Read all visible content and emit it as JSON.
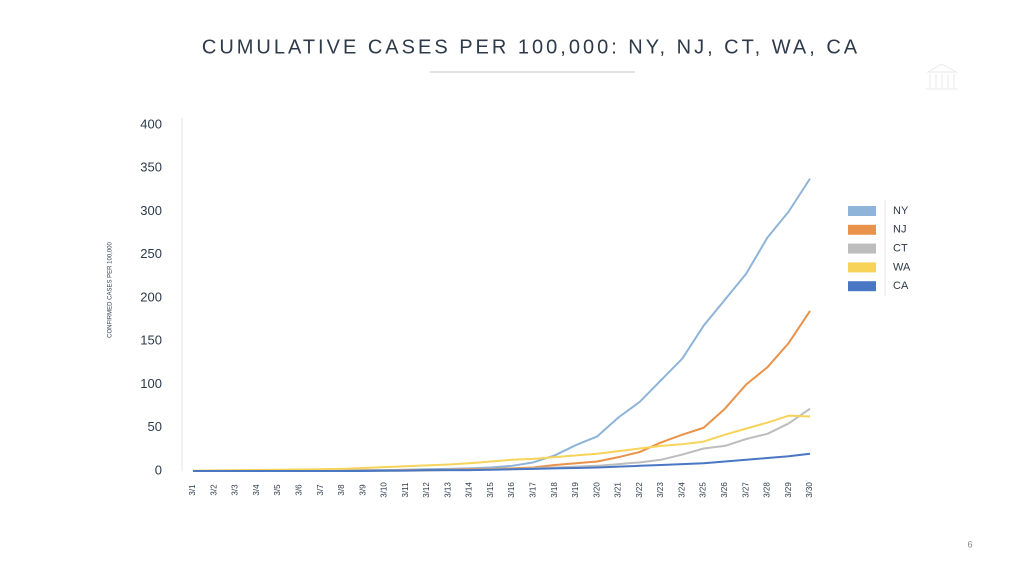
{
  "chart_data": {
    "type": "line",
    "title": "CUMULATIVE CASES PER 100,000: NY, NJ, CT, WA, CA",
    "y_label": "CONFIRMED CASES PER 100,000",
    "categories": [
      "3/1",
      "3/2",
      "3/3",
      "3/4",
      "3/5",
      "3/6",
      "3/7",
      "3/8",
      "3/9",
      "3/10",
      "3/11",
      "3/12",
      "3/13",
      "3/14",
      "3/15",
      "3/16",
      "3/17",
      "3/18",
      "3/19",
      "3/20",
      "3/21",
      "3/22",
      "3/23",
      "3/24",
      "3/25",
      "3/26",
      "3/27",
      "3/28",
      "3/29",
      "3/30"
    ],
    "series": [
      {
        "name": "NY",
        "color": "#8fb4d9",
        "values": [
          0,
          0,
          0,
          0,
          0,
          0,
          0.5,
          0.5,
          1,
          1,
          1.5,
          2,
          2.5,
          3,
          4,
          6,
          10,
          18,
          30,
          40,
          62,
          80,
          105,
          130,
          168,
          198,
          228,
          270,
          300,
          338
        ]
      },
      {
        "name": "NJ",
        "color": "#e8924a",
        "values": [
          0,
          0,
          0,
          0,
          0,
          0,
          0,
          0,
          0.5,
          0.5,
          1,
          1,
          1.5,
          2,
          2.5,
          3,
          4,
          7,
          9,
          11,
          16,
          22,
          33,
          42,
          50,
          72,
          100,
          120,
          148,
          185
        ]
      },
      {
        "name": "CT",
        "color": "#bdbdbd",
        "values": [
          0,
          0,
          0,
          0,
          0,
          0,
          0,
          0,
          0,
          0,
          0.5,
          0.5,
          1,
          1,
          2,
          2,
          3,
          4,
          5,
          6,
          8,
          10,
          13,
          19,
          26,
          29,
          37,
          43,
          55,
          72
        ]
      },
      {
        "name": "WA",
        "color": "#f7d35a",
        "values": [
          0.5,
          0.7,
          1,
          1.2,
          1.5,
          1.8,
          2,
          2.5,
          3.5,
          4.5,
          5.5,
          6.5,
          7.5,
          9,
          11,
          13,
          14,
          16,
          18,
          20,
          23,
          26,
          29,
          31,
          34,
          42,
          49,
          56,
          64,
          63
        ]
      },
      {
        "name": "CA",
        "color": "#4a77c4",
        "values": [
          0,
          0,
          0,
          0,
          0,
          0,
          0,
          0,
          0,
          0.5,
          0.5,
          1,
          1,
          1,
          1.5,
          2,
          2.5,
          3,
          3.5,
          4,
          5,
          6,
          7,
          8,
          9,
          11,
          13,
          15,
          17,
          20
        ]
      }
    ],
    "ylim": [
      0,
      400
    ],
    "yticks": [
      0,
      50,
      100,
      150,
      200,
      250,
      300,
      350,
      400
    ],
    "grid": false,
    "legend": "right"
  },
  "page_number": "6"
}
